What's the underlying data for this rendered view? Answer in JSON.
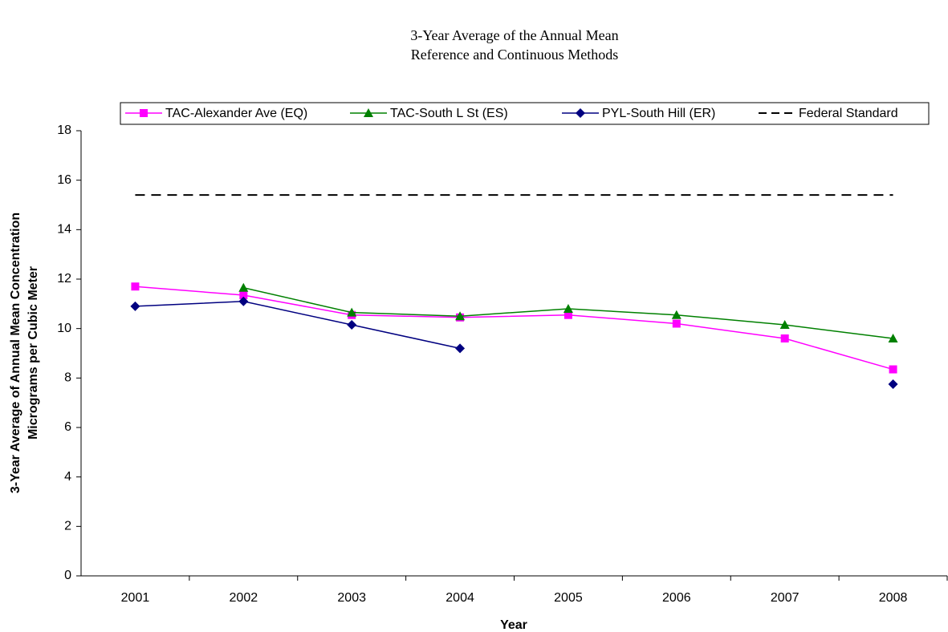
{
  "chart_data": {
    "type": "line",
    "title": "3-Year Average of the Annual Mean",
    "subtitle": "Reference and Continuous Methods",
    "x_label": "Year",
    "y_label": [
      "3-Year Average of Annual Mean Concentration",
      "Micrograms per Cubic Meter"
    ],
    "categories": [
      "2001",
      "2002",
      "2003",
      "2004",
      "2005",
      "2006",
      "2007",
      "2008"
    ],
    "series": [
      {
        "name": "TAC-Alexander Ave (EQ)",
        "color": "#ff00ff",
        "marker": "square",
        "values": [
          11.7,
          11.35,
          10.55,
          10.45,
          10.55,
          10.2,
          9.6,
          8.35
        ]
      },
      {
        "name": "TAC-South L St (ES)",
        "color": "#008000",
        "marker": "triangle",
        "values": [
          null,
          11.65,
          10.65,
          10.5,
          10.8,
          10.55,
          10.15,
          9.6
        ]
      },
      {
        "name": "PYL-South Hill (ER)",
        "color": "#000080",
        "marker": "diamond",
        "values": [
          10.9,
          11.1,
          10.15,
          9.2,
          null,
          null,
          null,
          7.75
        ]
      },
      {
        "name": "Federal Standard",
        "color": "#000000",
        "marker": "none",
        "dashed": true,
        "values": [
          15.4,
          15.4,
          15.4,
          15.4,
          15.4,
          15.4,
          15.4,
          15.4
        ]
      }
    ],
    "ylim": [
      0,
      18
    ],
    "yticks": [
      0,
      2,
      4,
      6,
      8,
      10,
      12,
      14,
      16,
      18
    ],
    "legend": "top"
  }
}
